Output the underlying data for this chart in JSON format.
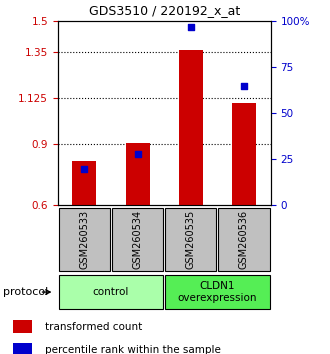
{
  "title": "GDS3510 / 220192_x_at",
  "samples": [
    "GSM260533",
    "GSM260534",
    "GSM260535",
    "GSM260536"
  ],
  "red_values": [
    0.815,
    0.905,
    1.36,
    1.1
  ],
  "blue_values_pct": [
    20,
    28,
    97,
    65
  ],
  "ylim_left": [
    0.6,
    1.5
  ],
  "ylim_right": [
    0,
    100
  ],
  "yticks_left": [
    0.6,
    0.9,
    1.125,
    1.35,
    1.5
  ],
  "ytick_labels_left": [
    "0.6",
    "0.9",
    "1.125",
    "1.35",
    "1.5"
  ],
  "yticks_right": [
    0,
    25,
    50,
    75,
    100
  ],
  "ytick_labels_right": [
    "0",
    "25",
    "50",
    "75",
    "100%"
  ],
  "groups": [
    {
      "label": "control",
      "samples": [
        0,
        1
      ],
      "color": "#aaffaa"
    },
    {
      "label": "CLDN1\noverexpression",
      "samples": [
        2,
        3
      ],
      "color": "#55ee55"
    }
  ],
  "protocol_label": "protocol",
  "legend_red": "transformed count",
  "legend_blue": "percentile rank within the sample",
  "bar_color": "#cc0000",
  "dot_color": "#0000cc",
  "tick_color_left": "#cc0000",
  "tick_color_right": "#0000cc",
  "bar_width": 0.45,
  "sample_box_color": "#c0c0c0",
  "dotted_yticks": [
    0.9,
    1.125,
    1.35
  ]
}
